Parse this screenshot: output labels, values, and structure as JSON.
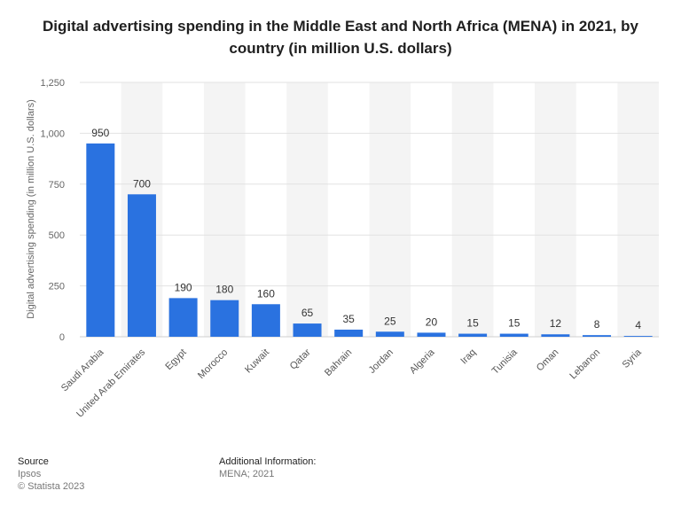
{
  "chart_data": {
    "type": "bar",
    "title": "Digital advertising spending in the Middle East and North Africa (MENA) in 2021, by country (in million U.S. dollars)",
    "xlabel": "",
    "ylabel": "Digital advertising spending (in million U.S. dollars)",
    "ylim": [
      0,
      1250
    ],
    "yticks": [
      0,
      250,
      500,
      750,
      1000,
      1250
    ],
    "ytick_labels": [
      "0",
      "250",
      "500",
      "750",
      "1,000",
      "1,250"
    ],
    "categories": [
      "Saudi Arabia",
      "United Arab Emirates",
      "Egypt",
      "Morocco",
      "Kuwait",
      "Qatar",
      "Bahrain",
      "Jordan",
      "Algeria",
      "Iraq",
      "Tunisia",
      "Oman",
      "Lebanon",
      "Syria"
    ],
    "values": [
      950,
      700,
      190,
      180,
      160,
      65,
      35,
      25,
      20,
      15,
      15,
      12,
      8,
      4
    ],
    "bar_color": "#2a72e0",
    "grid": true
  },
  "footer": {
    "source_heading": "Source",
    "source_name": "Ipsos",
    "copyright": "© Statista 2023",
    "info_heading": "Additional Information:",
    "info_text": "MENA; 2021"
  }
}
